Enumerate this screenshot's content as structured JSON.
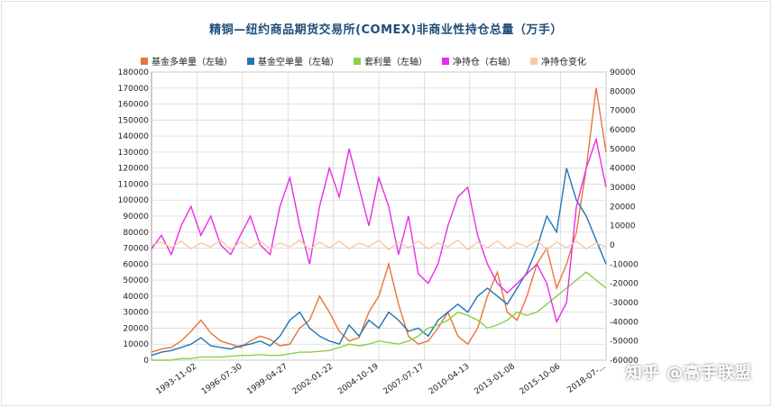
{
  "title": "精铜—纽约商品期货交易所(COMEX)非商业性持仓总量（万手）",
  "watermark_text": "知乎 @高手联盟",
  "chart_data": {
    "type": "line",
    "title": "精铜—纽约商品期货交易所(COMEX)非商业性持仓总量（万手）",
    "legend_placement": "top",
    "grid": true,
    "x_tick_labels": [
      "1993-11-02",
      "1996-07-30",
      "1999-04-27",
      "2002-01-22",
      "2004-10-19",
      "2007-07-17",
      "2010-04-13",
      "2013-01-08",
      "2015-10-06",
      "2018-07-..."
    ],
    "left_axis": {
      "min": 0,
      "max": 180000,
      "step": 10000
    },
    "right_axis": {
      "min": -60000,
      "max": 90000,
      "step": 10000
    },
    "series": [
      {
        "name": "基金多单量（左轴）",
        "color": "#e8743b",
        "axis": "left",
        "values": [
          5000,
          7000,
          8000,
          12000,
          18000,
          25000,
          17000,
          12000,
          10000,
          8000,
          12000,
          15000,
          13000,
          9000,
          10000,
          20000,
          25000,
          40000,
          30000,
          18000,
          12000,
          14000,
          30000,
          40000,
          60000,
          35000,
          15000,
          10000,
          12000,
          20000,
          30000,
          15000,
          10000,
          20000,
          40000,
          55000,
          30000,
          25000,
          40000,
          60000,
          70000,
          45000,
          60000,
          80000,
          120000,
          170000,
          130000
        ]
      },
      {
        "name": "基金空单量（左轴）",
        "color": "#1f77b4",
        "axis": "left",
        "values": [
          3000,
          5000,
          6000,
          8000,
          10000,
          14000,
          9000,
          8000,
          7000,
          9000,
          10000,
          12000,
          9000,
          15000,
          25000,
          30000,
          20000,
          15000,
          12000,
          10000,
          22000,
          15000,
          25000,
          20000,
          30000,
          25000,
          18000,
          20000,
          15000,
          25000,
          30000,
          35000,
          30000,
          40000,
          45000,
          40000,
          35000,
          45000,
          55000,
          70000,
          90000,
          80000,
          120000,
          100000,
          90000,
          75000,
          60000
        ]
      },
      {
        "name": "套利量（左轴）",
        "color": "#8ccf4a",
        "axis": "left",
        "values": [
          0,
          0,
          0,
          1000,
          1000,
          2000,
          2000,
          2000,
          2500,
          3000,
          3000,
          3500,
          3000,
          3000,
          4000,
          5000,
          5000,
          5500,
          6000,
          8000,
          10000,
          9000,
          10000,
          12000,
          11000,
          10000,
          12000,
          15000,
          20000,
          22000,
          25000,
          30000,
          28000,
          25000,
          20000,
          22000,
          25000,
          30000,
          28000,
          30000,
          35000,
          40000,
          45000,
          50000,
          55000,
          50000,
          45000
        ]
      },
      {
        "name": "净持仓（右轴）",
        "color": "#e62ee6",
        "axis": "right",
        "values": [
          -2000,
          5000,
          -5000,
          10000,
          20000,
          5000,
          15000,
          0,
          -5000,
          5000,
          15000,
          0,
          -5000,
          20000,
          35000,
          10000,
          -10000,
          20000,
          40000,
          25000,
          50000,
          30000,
          10000,
          35000,
          20000,
          -5000,
          15000,
          -15000,
          -20000,
          -10000,
          10000,
          25000,
          30000,
          5000,
          -10000,
          -20000,
          -25000,
          -20000,
          -15000,
          -10000,
          -20000,
          -40000,
          -30000,
          20000,
          40000,
          55000,
          30000
        ]
      },
      {
        "name": "净持仓变化",
        "color": "#f5c9a3",
        "axis": "right",
        "values": [
          0,
          1500,
          -1500,
          2000,
          -2000,
          1000,
          -1000,
          2500,
          -2500,
          1500,
          -1500,
          2000,
          -2000,
          1000,
          -1000,
          2500,
          -2500,
          1500,
          -1500,
          2000,
          -2000,
          1000,
          -1000,
          2500,
          -2500,
          1500,
          -1500,
          2000,
          -2000,
          1000,
          -1000,
          2500,
          -2500,
          1500,
          -1500,
          2000,
          -2000,
          1000,
          -1000,
          2500,
          -2500,
          1500,
          -1500,
          2000,
          -2000,
          1000,
          -1000
        ]
      }
    ]
  }
}
